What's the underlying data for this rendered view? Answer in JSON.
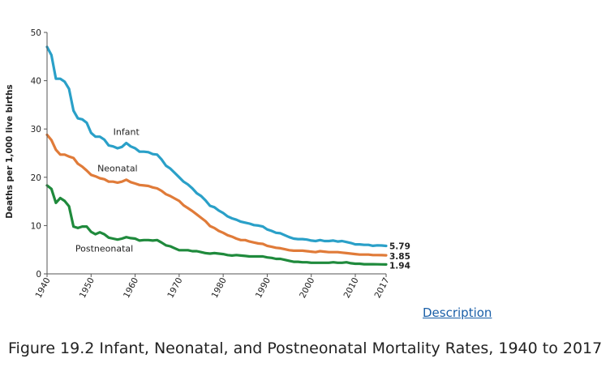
{
  "chart_data": {
    "type": "line",
    "ylabel": "Deaths per 1,000 live births",
    "xlabel": "",
    "xlim": [
      1940,
      2017
    ],
    "ylim": [
      0,
      50
    ],
    "x_ticks": [
      1940,
      1950,
      1960,
      1970,
      1980,
      1990,
      2000,
      2010,
      2017
    ],
    "y_ticks": [
      0,
      10,
      20,
      30,
      40,
      50
    ],
    "grid": false,
    "series": [
      {
        "name": "Infant",
        "color": "#2aa0c8",
        "label_x": 1958,
        "label_y": 28.8,
        "end_label": "5.79",
        "x": [
          1940,
          1941,
          1942,
          1943,
          1944,
          1945,
          1946,
          1947,
          1948,
          1949,
          1950,
          1951,
          1952,
          1953,
          1954,
          1955,
          1956,
          1957,
          1958,
          1959,
          1960,
          1961,
          1962,
          1963,
          1964,
          1965,
          1966,
          1967,
          1968,
          1969,
          1970,
          1971,
          1972,
          1973,
          1974,
          1975,
          1976,
          1977,
          1978,
          1979,
          1980,
          1981,
          1982,
          1983,
          1984,
          1985,
          1986,
          1987,
          1988,
          1989,
          1990,
          1991,
          1992,
          1993,
          1994,
          1995,
          1996,
          1997,
          1998,
          1999,
          2000,
          2001,
          2002,
          2003,
          2004,
          2005,
          2006,
          2007,
          2008,
          2009,
          2010,
          2011,
          2012,
          2013,
          2014,
          2015,
          2016,
          2017
        ],
        "values": [
          47.0,
          45.3,
          40.4,
          40.4,
          39.8,
          38.3,
          33.8,
          32.2,
          32.0,
          31.3,
          29.2,
          28.4,
          28.4,
          27.8,
          26.6,
          26.4,
          26.0,
          26.3,
          27.1,
          26.4,
          26.0,
          25.3,
          25.3,
          25.2,
          24.8,
          24.7,
          23.7,
          22.4,
          21.8,
          20.9,
          20.0,
          19.1,
          18.5,
          17.7,
          16.7,
          16.1,
          15.2,
          14.1,
          13.8,
          13.1,
          12.6,
          11.9,
          11.5,
          11.2,
          10.8,
          10.6,
          10.4,
          10.1,
          10.0,
          9.8,
          9.2,
          8.9,
          8.5,
          8.4,
          8.0,
          7.6,
          7.3,
          7.2,
          7.2,
          7.1,
          6.9,
          6.8,
          7.0,
          6.8,
          6.8,
          6.9,
          6.7,
          6.8,
          6.6,
          6.4,
          6.1,
          6.1,
          6.0,
          6.0,
          5.8,
          5.9,
          5.87,
          5.79
        ]
      },
      {
        "name": "Neonatal",
        "color": "#e07b39",
        "label_x": 1956,
        "label_y": 21.2,
        "end_label": "3.85",
        "x": [
          1940,
          1941,
          1942,
          1943,
          1944,
          1945,
          1946,
          1947,
          1948,
          1949,
          1950,
          1951,
          1952,
          1953,
          1954,
          1955,
          1956,
          1957,
          1958,
          1959,
          1960,
          1961,
          1962,
          1963,
          1964,
          1965,
          1966,
          1967,
          1968,
          1969,
          1970,
          1971,
          1972,
          1973,
          1974,
          1975,
          1976,
          1977,
          1978,
          1979,
          1980,
          1981,
          1982,
          1983,
          1984,
          1985,
          1986,
          1987,
          1988,
          1989,
          1990,
          1991,
          1992,
          1993,
          1994,
          1995,
          1996,
          1997,
          1998,
          1999,
          2000,
          2001,
          2002,
          2003,
          2004,
          2005,
          2006,
          2007,
          2008,
          2009,
          2010,
          2011,
          2012,
          2013,
          2014,
          2015,
          2016,
          2017
        ],
        "values": [
          28.8,
          27.7,
          25.7,
          24.7,
          24.7,
          24.3,
          24.0,
          22.8,
          22.2,
          21.4,
          20.5,
          20.2,
          19.8,
          19.6,
          19.1,
          19.1,
          18.9,
          19.1,
          19.5,
          19.0,
          18.7,
          18.4,
          18.3,
          18.2,
          17.9,
          17.7,
          17.2,
          16.5,
          16.1,
          15.6,
          15.1,
          14.2,
          13.6,
          13.0,
          12.3,
          11.6,
          10.9,
          9.9,
          9.5,
          8.9,
          8.5,
          8.0,
          7.7,
          7.3,
          7.0,
          7.0,
          6.7,
          6.5,
          6.3,
          6.2,
          5.8,
          5.6,
          5.4,
          5.3,
          5.1,
          4.9,
          4.8,
          4.8,
          4.8,
          4.7,
          4.6,
          4.5,
          4.7,
          4.6,
          4.5,
          4.5,
          4.5,
          4.4,
          4.3,
          4.2,
          4.1,
          4.0,
          4.0,
          4.0,
          3.9,
          3.9,
          3.88,
          3.85
        ]
      },
      {
        "name": "Postneonatal",
        "color": "#1f8a3c",
        "label_x": 1953,
        "label_y": 4.6,
        "end_label": "1.94",
        "x": [
          1940,
          1941,
          1942,
          1943,
          1944,
          1945,
          1946,
          1947,
          1948,
          1949,
          1950,
          1951,
          1952,
          1953,
          1954,
          1955,
          1956,
          1957,
          1958,
          1959,
          1960,
          1961,
          1962,
          1963,
          1964,
          1965,
          1966,
          1967,
          1968,
          1969,
          1970,
          1971,
          1972,
          1973,
          1974,
          1975,
          1976,
          1977,
          1978,
          1979,
          1980,
          1981,
          1982,
          1983,
          1984,
          1985,
          1986,
          1987,
          1988,
          1989,
          1990,
          1991,
          1992,
          1993,
          1994,
          1995,
          1996,
          1997,
          1998,
          1999,
          2000,
          2001,
          2002,
          2003,
          2004,
          2005,
          2006,
          2007,
          2008,
          2009,
          2010,
          2011,
          2012,
          2013,
          2014,
          2015,
          2016,
          2017
        ],
        "values": [
          18.3,
          17.6,
          14.7,
          15.7,
          15.1,
          14.0,
          9.8,
          9.5,
          9.8,
          9.8,
          8.7,
          8.2,
          8.6,
          8.2,
          7.5,
          7.3,
          7.1,
          7.3,
          7.6,
          7.4,
          7.3,
          6.9,
          7.0,
          7.0,
          6.9,
          7.0,
          6.5,
          5.9,
          5.7,
          5.3,
          4.9,
          4.9,
          4.9,
          4.7,
          4.7,
          4.5,
          4.3,
          4.2,
          4.3,
          4.2,
          4.1,
          3.9,
          3.8,
          3.9,
          3.8,
          3.7,
          3.6,
          3.6,
          3.6,
          3.6,
          3.4,
          3.3,
          3.1,
          3.1,
          2.9,
          2.7,
          2.5,
          2.5,
          2.4,
          2.4,
          2.3,
          2.3,
          2.3,
          2.3,
          2.3,
          2.4,
          2.3,
          2.3,
          2.4,
          2.2,
          2.1,
          2.1,
          2.0,
          2.0,
          2.0,
          1.98,
          1.96,
          1.94
        ]
      }
    ]
  },
  "description_link": "Description",
  "caption": "Figure 19.2 Infant, Neonatal, and Postneonatal Mortality Rates, 1940 to 2017"
}
